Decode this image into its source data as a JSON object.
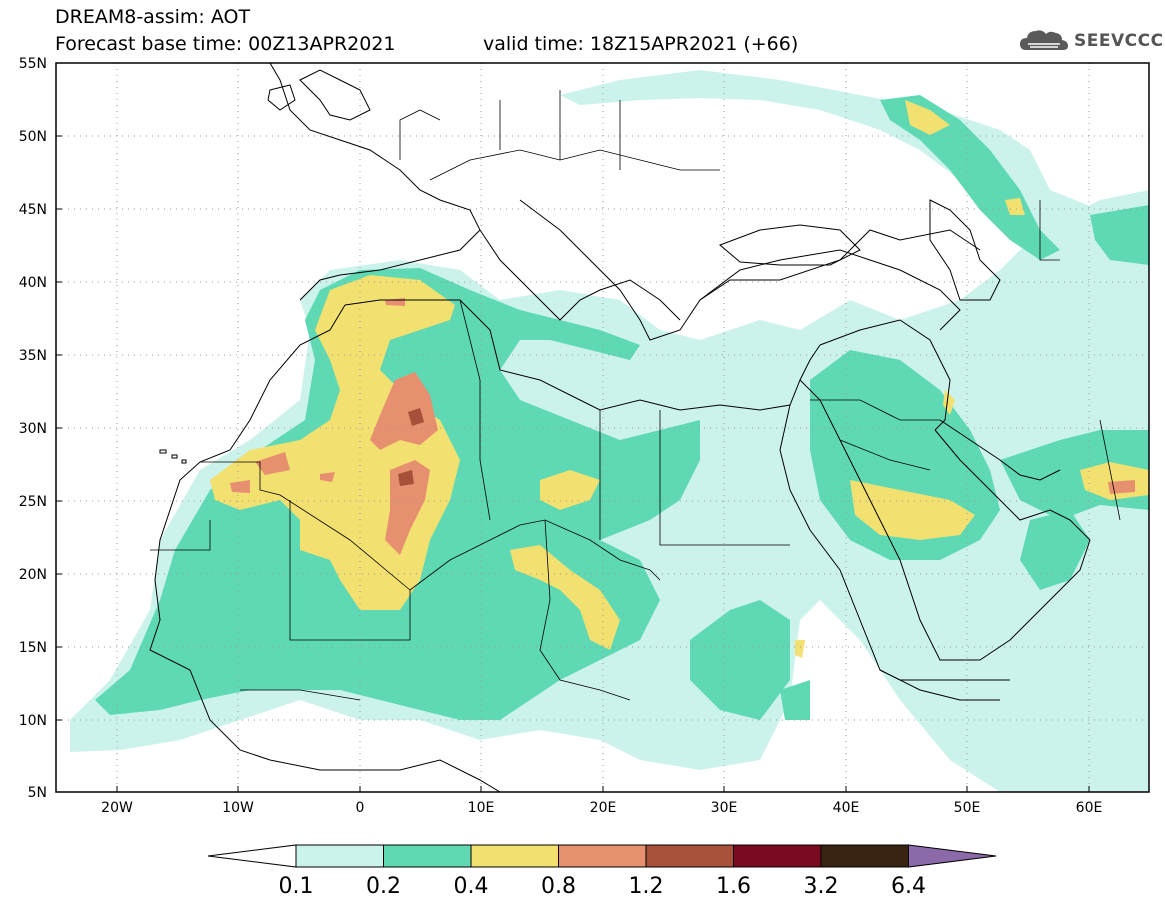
{
  "header": {
    "title": "DREAM8-assim: AOT",
    "base_time": "Forecast base time: 00Z13APR2021",
    "valid_time": "valid time: 18Z15APR2021 (+66)",
    "logo_text": "SEEVCCC"
  },
  "map": {
    "lon_range": [
      -25,
      65
    ],
    "lat_range": [
      5,
      55
    ],
    "lat_labels": [
      "55N",
      "50N",
      "45N",
      "40N",
      "35N",
      "30N",
      "25N",
      "20N",
      "15N",
      "10N",
      "5N"
    ],
    "lat_values": [
      55,
      50,
      45,
      40,
      35,
      30,
      25,
      20,
      15,
      10,
      5
    ],
    "lon_labels": [
      "20W",
      "10W",
      "0",
      "10E",
      "20E",
      "30E",
      "40E",
      "50E",
      "60E"
    ],
    "lon_values": [
      -20,
      -10,
      0,
      10,
      20,
      30,
      40,
      50,
      60
    ]
  },
  "colorbar": {
    "labels": [
      "0.1",
      "0.2",
      "0.4",
      "0.8",
      "1.2",
      "1.6",
      "3.2",
      "6.4"
    ],
    "colors": [
      "#ccf2ec",
      "#5ed9b4",
      "#f2e070",
      "#e69070",
      "#a8503a",
      "#7a0a22",
      "#3a2312",
      "#8a6aa8"
    ],
    "under_color": "#ffffff"
  }
}
